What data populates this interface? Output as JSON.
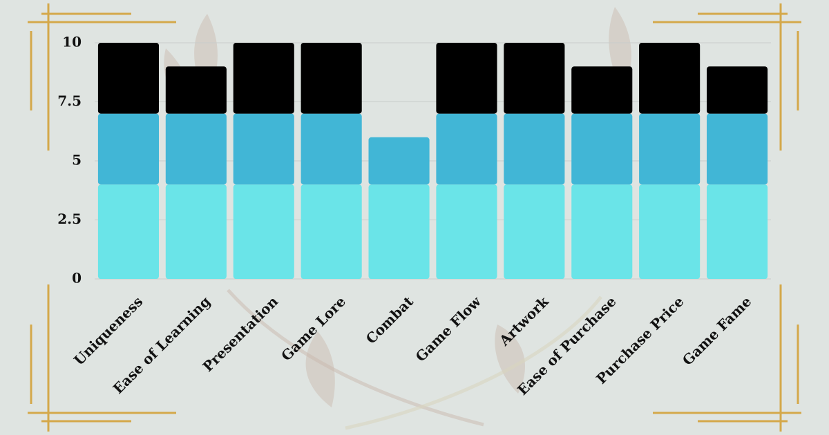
{
  "chart_data": {
    "type": "stacked-bar",
    "categories": [
      "Uniqueness",
      "Ease of Learning",
      "Presentation",
      "Game Lore",
      "Combat",
      "Game Flow",
      "Artwork",
      "Ease of Purchase",
      "Purchase Price",
      "Game Fame"
    ],
    "series": [
      {
        "color": "#6ae4e8",
        "values": [
          4,
          4,
          4,
          4,
          4,
          4,
          4,
          4,
          4,
          4
        ]
      },
      {
        "color": "#41b6d6",
        "values": [
          3,
          3,
          3,
          3,
          2,
          3,
          3,
          3,
          3,
          3
        ]
      },
      {
        "color": "#000000",
        "values": [
          3,
          2,
          3,
          3,
          0,
          3,
          3,
          2,
          3,
          2
        ]
      }
    ],
    "ylim": [
      0,
      10
    ],
    "yticks": [
      0,
      2.5,
      5,
      7.5,
      10
    ],
    "grid": true
  }
}
